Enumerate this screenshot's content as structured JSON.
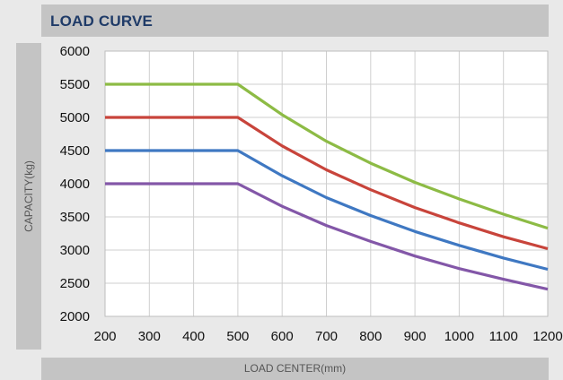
{
  "chart_data": {
    "type": "line",
    "title": "LOAD CURVE",
    "xlabel": "LOAD CENTER(mm)",
    "ylabel": "CAPACITY(kg)",
    "xlim": [
      200,
      1200
    ],
    "ylim": [
      2000,
      6000
    ],
    "x_ticks": [
      200,
      300,
      400,
      500,
      600,
      700,
      800,
      900,
      1000,
      1100,
      1200
    ],
    "y_ticks": [
      2000,
      2500,
      3000,
      3500,
      4000,
      4500,
      5000,
      5500,
      6000
    ],
    "grid": true,
    "series": [
      {
        "color": "#8dbb45",
        "x": [
          200,
          500,
          600,
          700,
          800,
          900,
          1000,
          1100,
          1200
        ],
        "y": [
          5500,
          5500,
          5040,
          4640,
          4310,
          4020,
          3770,
          3540,
          3330
        ]
      },
      {
        "color": "#c8443b",
        "x": [
          200,
          500,
          600,
          700,
          800,
          900,
          1000,
          1100,
          1200
        ],
        "y": [
          5000,
          5000,
          4570,
          4210,
          3910,
          3640,
          3410,
          3200,
          3020
        ]
      },
      {
        "color": "#3f78c2",
        "x": [
          200,
          500,
          600,
          700,
          800,
          900,
          1000,
          1100,
          1200
        ],
        "y": [
          4500,
          4500,
          4120,
          3790,
          3520,
          3280,
          3070,
          2880,
          2710
        ]
      },
      {
        "color": "#8357a8",
        "x": [
          200,
          500,
          600,
          700,
          800,
          900,
          1000,
          1100,
          1200
        ],
        "y": [
          4000,
          4000,
          3660,
          3370,
          3130,
          2910,
          2720,
          2560,
          2410
        ]
      }
    ]
  }
}
